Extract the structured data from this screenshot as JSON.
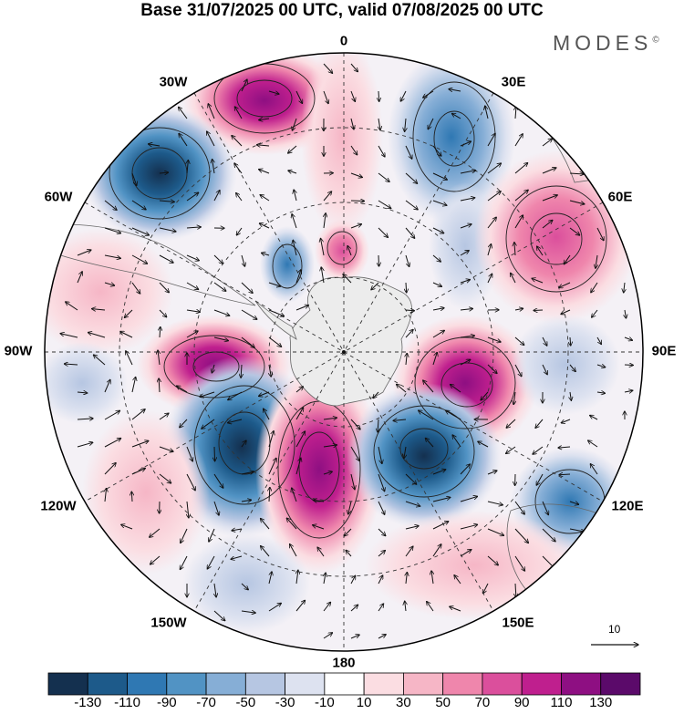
{
  "title": "Base 31/07/2025 00 UTC, valid 07/08/2025 00 UTC",
  "brand": "MODES",
  "brand_mark": "©",
  "longitude_labels": {
    "lon_0": "0",
    "lon_30E": "30E",
    "lon_60E": "60E",
    "lon_90E": "90E",
    "lon_120E": "120E",
    "lon_150E": "150E",
    "lon_180": "180",
    "lon_150W": "150W",
    "lon_120W": "120W",
    "lon_90W": "90W",
    "lon_60W": "60W",
    "lon_30W": "30W"
  },
  "reference_vector_label": "10",
  "colorbar": {
    "ticks": [
      "-130",
      "-110",
      "-90",
      "-70",
      "-50",
      "-30",
      "-10",
      "10",
      "30",
      "50",
      "70",
      "90",
      "110",
      "130"
    ],
    "colors": [
      "#14304f",
      "#1d5a8a",
      "#2f78b3",
      "#5193c4",
      "#86aed6",
      "#b6c6e2",
      "#dde2f0",
      "#ffffff",
      "#fbdde2",
      "#f6b6c6",
      "#ef86ac",
      "#db4f9c",
      "#bf1f8e",
      "#8e0f82",
      "#5b0a6a"
    ]
  },
  "field_colors": {
    "land": "#ececec",
    "outline": "#222222",
    "grid": "#333333",
    "arrow": "#111111"
  }
}
